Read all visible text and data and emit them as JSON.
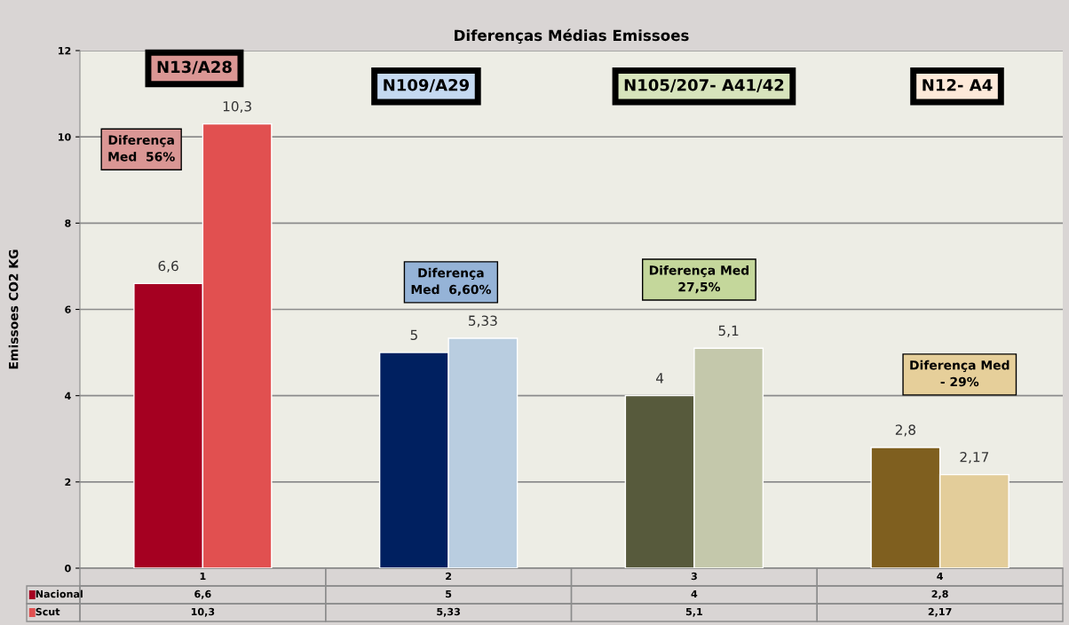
{
  "chart_data": {
    "type": "bar",
    "title": "Diferenças Médias Emissoes",
    "ylabel": "Emissoes CO2 KG",
    "categories": [
      "1",
      "2",
      "3",
      "4"
    ],
    "series": [
      {
        "name": "Nacional",
        "colors": [
          "#a50021",
          "#002060",
          "#575a3c",
          "#7f5f1f"
        ],
        "values": [
          6.6,
          5,
          4,
          2.8
        ],
        "value_labels": [
          "6,6",
          "5",
          "4",
          "2,8"
        ]
      },
      {
        "name": "Scut",
        "colors": [
          "#e15050",
          "#b9cde0",
          "#c4c8ab",
          "#e3cd9a"
        ],
        "values": [
          10.3,
          5.33,
          5.1,
          2.17
        ],
        "value_labels": [
          "10,3",
          "5,33",
          "5,1",
          "2,17"
        ]
      }
    ],
    "ylim": [
      0,
      12
    ],
    "yticks": [
      0,
      2,
      4,
      6,
      8,
      10,
      12
    ],
    "grid": "y",
    "legend": "bottom",
    "annotations": [
      "N13/A28",
      "N109/A29",
      "N105/207- A41/42",
      "N12- A4",
      "Diferença\nMed  56%",
      "Diferença\nMed  6,60%",
      "Diferença Med\n27,5%",
      "Diferença Med\n- 29%"
    ]
  }
}
